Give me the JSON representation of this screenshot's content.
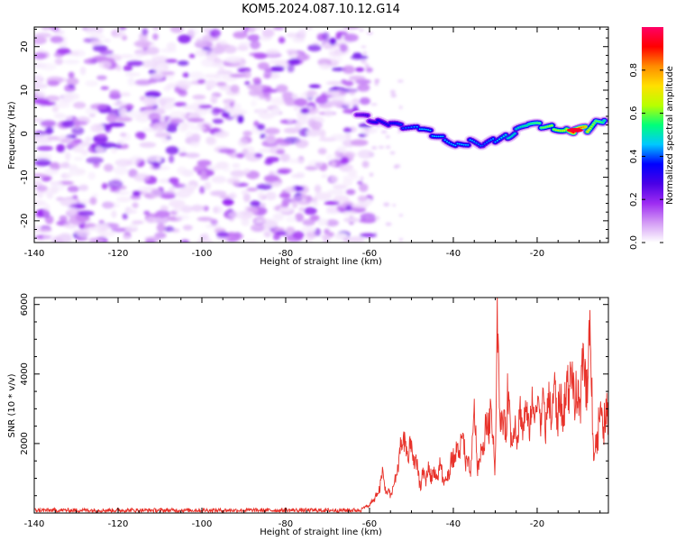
{
  "figure": {
    "title": "KOM5.2024.087.10.12.G14"
  },
  "chart_data": [
    {
      "type": "heatmap",
      "title": "KOM5.2024.087.10.12.G14",
      "xlabel": "Height of straight line (km)",
      "ylabel": "Frequency (Hz)",
      "xlim": [
        -140,
        -3
      ],
      "ylim": [
        -25,
        24.5
      ],
      "x_ticks": [
        -140,
        -120,
        -100,
        -80,
        -60,
        -40,
        -20
      ],
      "y_ticks": [
        -20,
        -10,
        0,
        10,
        20
      ],
      "colorbar": {
        "label": "Normalized spectral amplitude",
        "range": [
          0,
          1
        ],
        "ticks": [
          0.0,
          0.2,
          0.4,
          0.6,
          0.8
        ],
        "colormap": [
          "#ffffff",
          "#d49cf5",
          "#9e2cf2",
          "#4a00e6",
          "#0000ff",
          "#00c8ff",
          "#00ff7a",
          "#b8ff00",
          "#ffe000",
          "#ff8c00",
          "#ff0000",
          "#ff0066"
        ]
      },
      "noise_region": {
        "x": [
          -140,
          -62
        ],
        "freq": [
          -25,
          24.5
        ],
        "amplitude_range": [
          0.02,
          0.3
        ]
      },
      "ridge": [
        {
          "x": -63,
          "freq": 4.5,
          "amp": 0.25
        },
        {
          "x": -60,
          "freq": 3.5,
          "amp": 0.3
        },
        {
          "x": -58,
          "freq": 2.5,
          "amp": 0.35
        },
        {
          "x": -55,
          "freq": 2.0,
          "amp": 0.35
        },
        {
          "x": -52,
          "freq": 1.5,
          "amp": 0.4
        },
        {
          "x": -48,
          "freq": 1.0,
          "amp": 0.45
        },
        {
          "x": -45,
          "freq": 0.0,
          "amp": 0.45
        },
        {
          "x": -42,
          "freq": -1.0,
          "amp": 0.45
        },
        {
          "x": -39,
          "freq": -2.5,
          "amp": 0.45
        },
        {
          "x": -36,
          "freq": -2.0,
          "amp": 0.45
        },
        {
          "x": -33,
          "freq": -3.0,
          "amp": 0.4
        },
        {
          "x": -30,
          "freq": -1.5,
          "amp": 0.45
        },
        {
          "x": -27,
          "freq": -0.5,
          "amp": 0.5
        },
        {
          "x": -25,
          "freq": 0.5,
          "amp": 0.5
        },
        {
          "x": -22,
          "freq": 2.0,
          "amp": 0.55
        },
        {
          "x": -19,
          "freq": 1.8,
          "amp": 0.6
        },
        {
          "x": -16,
          "freq": 1.5,
          "amp": 0.65
        },
        {
          "x": -13,
          "freq": 1.0,
          "amp": 0.7
        },
        {
          "x": -11,
          "freq": 0.8,
          "amp": 0.95
        },
        {
          "x": -8,
          "freq": 1.0,
          "amp": 0.75
        },
        {
          "x": -6,
          "freq": 2.5,
          "amp": 0.6
        },
        {
          "x": -4,
          "freq": 3.0,
          "amp": 0.55
        }
      ]
    },
    {
      "type": "line",
      "xlabel": "Height of straight line (km)",
      "ylabel": "SNR (10 * v/v)",
      "xlim": [
        -140,
        -3
      ],
      "ylim": [
        0,
        6200
      ],
      "x_ticks": [
        -140,
        -120,
        -100,
        -80,
        -60,
        -40,
        -20
      ],
      "y_ticks": [
        2000,
        4000,
        6000
      ],
      "line_color": "#e8322a",
      "baseline": {
        "x_range": [
          -140,
          -62
        ],
        "value": 80,
        "noise": 60
      },
      "envelope_x": [
        -62,
        -60,
        -58,
        -57,
        -56,
        -55,
        -54,
        -52,
        -51,
        -50,
        -48,
        -46,
        -44,
        -43,
        -42,
        -40,
        -39,
        -38,
        -36,
        -35,
        -34,
        -32,
        -31,
        -30,
        -29.5,
        -29,
        -28,
        -27,
        -26,
        -25,
        -24,
        -22,
        -20,
        -18,
        -16,
        -14,
        -13,
        -12,
        -10,
        -9,
        -8,
        -7.2,
        -6.5,
        -5.5,
        -4,
        -3
      ],
      "envelope_y": [
        150,
        250,
        600,
        1200,
        700,
        600,
        900,
        2500,
        1800,
        2100,
        1000,
        1300,
        1200,
        1500,
        900,
        1800,
        1900,
        2300,
        1200,
        3000,
        1400,
        2800,
        3200,
        1500,
        5900,
        3300,
        2600,
        3600,
        2400,
        2700,
        3000,
        2900,
        3500,
        3000,
        3600,
        3200,
        3800,
        4300,
        3200,
        4800,
        4000,
        6000,
        1500,
        2800,
        2900,
        3000
      ]
    }
  ]
}
